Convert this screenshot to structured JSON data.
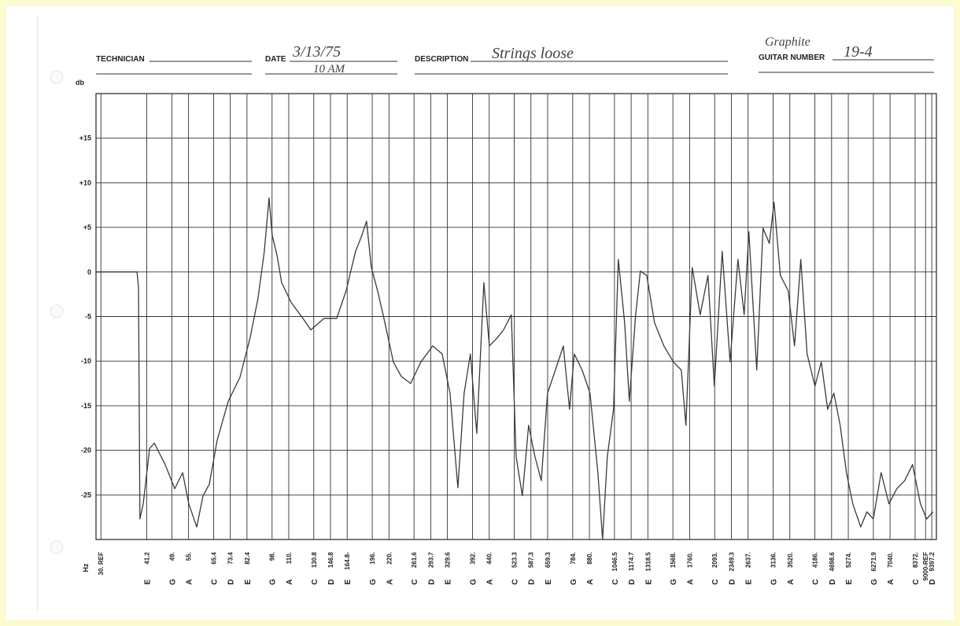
{
  "form": {
    "technician_label": "TECHNICIAN",
    "date_label": "DATE",
    "date_value": "3/13/75",
    "time_value": "10 AM",
    "description_label": "DESCRIPTION",
    "description_value": "Strings loose",
    "guitar_label": "GUITAR NUMBER",
    "guitar_note": "Graphite",
    "guitar_value": "19-4"
  },
  "chart_data": {
    "type": "line",
    "y_label": "db",
    "x_label": "Hz",
    "log_x": true,
    "grid": true,
    "color": "#3a3a3a",
    "xlim": [
      29,
      9700
    ],
    "ylim": [
      -30,
      20
    ],
    "yticks": [
      {
        "value": 15,
        "label": "+15"
      },
      {
        "value": 10,
        "label": "+10"
      },
      {
        "value": 5,
        "label": "+5"
      },
      0,
      -5,
      -10,
      -15,
      -20,
      -25
    ],
    "xticks": [
      {
        "value": 30,
        "label": "30. REF"
      },
      41.2,
      {
        "value": 49,
        "label": "49."
      },
      {
        "value": 55,
        "label": "55."
      },
      65.4,
      73.4,
      82.4,
      {
        "value": 98,
        "label": "98."
      },
      {
        "value": 110,
        "label": "110."
      },
      130.8,
      146.8,
      {
        "value": 164.8,
        "label": "164.8-"
      },
      {
        "value": 196,
        "label": "196."
      },
      {
        "value": 220,
        "label": "220."
      },
      261.6,
      293.7,
      329.6,
      {
        "value": 392,
        "label": "392."
      },
      {
        "value": 440,
        "label": "440."
      },
      523.3,
      587.3,
      659.3,
      {
        "value": 784,
        "label": "784."
      },
      {
        "value": 880,
        "label": "880."
      },
      1046.5,
      1174.7,
      1318.5,
      {
        "value": 1568,
        "label": "1568."
      },
      {
        "value": 1760,
        "label": "1760."
      },
      {
        "value": 2093,
        "label": "2093."
      },
      2349.3,
      {
        "value": 2637,
        "label": "2637."
      },
      {
        "value": 3136,
        "label": "3136."
      },
      {
        "value": 3520,
        "label": "3520."
      },
      {
        "value": 4186,
        "label": "4186."
      },
      4698.6,
      {
        "value": 5274,
        "label": "5274."
      },
      6271.9,
      {
        "value": 7040,
        "label": "7040."
      },
      {
        "value": 8372,
        "label": "8372."
      },
      {
        "value": 9000,
        "label": "9000-REF"
      },
      9397.2
    ],
    "x_notes": [
      null,
      "E",
      "G",
      "A",
      "C",
      "D",
      "E",
      "G",
      "A",
      "C",
      "D",
      "E",
      "G",
      "A",
      "C",
      "D",
      "E",
      "G",
      "A",
      "C",
      "D",
      "E",
      "G",
      "A",
      "C",
      "D",
      "E",
      "G",
      "A",
      "C",
      "D",
      "E",
      "G",
      "A",
      "C",
      "D",
      "E",
      "G",
      "A",
      "C",
      null,
      "D"
    ],
    "x": [
      29,
      38.5,
      38.9,
      39.3,
      40.2,
      42,
      43.4,
      46.8,
      50,
      52.8,
      55.1,
      58.2,
      60.8,
      63.5,
      67,
      72.4,
      78.5,
      84.2,
      88.9,
      92.9,
      96,
      98.1,
      101.4,
      104.7,
      111.8,
      121.3,
      128.1,
      140.5,
      153.3,
      163.6,
      174.6,
      182.4,
      188.4,
      194.7,
      203.3,
      212.4,
      226.8,
      239.5,
      255.5,
      274.3,
      297.8,
      317.8,
      335.5,
      354.4,
      370,
      386.3,
      403.7,
      424,
      440.5,
      464.9,
      485.8,
      512.7,
      530,
      553.3,
      578,
      603.8,
      630.8,
      658.6,
      695.4,
      734.6,
      767,
      792.6,
      837,
      883.6,
      933.2,
      964,
      996,
      1040,
      1075,
      1123,
      1160,
      1212,
      1252,
      1308,
      1381,
      1473,
      1573,
      1661,
      1716,
      1792,
      1893,
      1998,
      2088,
      2205,
      2328,
      2458,
      2567,
      2652,
      2800,
      2925,
      3055,
      3156,
      3297,
      3480,
      3635,
      3798,
      3967,
      4189,
      4376,
      4571,
      4774,
      4985,
      5207,
      5440,
      5745,
      6000,
      6268,
      6618,
      6986,
      7378,
      7791,
      8225,
      8686,
      9072,
      9477
    ],
    "values": [
      0,
      0,
      -1.7,
      -27.7,
      -26,
      -19.8,
      -19.2,
      -21.6,
      -24.3,
      -22.5,
      -26,
      -28.6,
      -25.1,
      -23.8,
      -18.9,
      -14.5,
      -11.8,
      -7.4,
      -3,
      2.3,
      8.3,
      4.1,
      1.9,
      -1.2,
      -3.4,
      -5.2,
      -6.5,
      -5.2,
      -5.2,
      -2.1,
      2.3,
      4.1,
      5.7,
      0.5,
      -2.1,
      -5.2,
      -10.1,
      -11.7,
      -12.5,
      -10.1,
      -8.3,
      -9.2,
      -13.6,
      -24.2,
      -13.6,
      -9.2,
      -18.1,
      -1.2,
      -8.3,
      -7.4,
      -6.5,
      -4.8,
      -20.7,
      -25.1,
      -17.2,
      -20.7,
      -23.4,
      -13.6,
      -11,
      -8.3,
      -15.4,
      -9.2,
      -11,
      -13.6,
      -22.5,
      -30,
      -20.7,
      -15.4,
      1.4,
      -5.7,
      -14.5,
      -4.8,
      0.1,
      -0.4,
      -5.7,
      -8.3,
      -10.1,
      -11,
      -17.2,
      0.5,
      -4.8,
      -0.4,
      -12.8,
      2.3,
      -10.1,
      1.4,
      -4.8,
      4.5,
      -11,
      4.9,
      3.2,
      7.8,
      -0.4,
      -2.1,
      -8.3,
      1.4,
      -9.2,
      -12.8,
      -10.1,
      -15.4,
      -13.6,
      -17.2,
      -22.5,
      -26,
      -28.6,
      -26.9,
      -27.7,
      -22.5,
      -26,
      -24.3,
      -23.4,
      -21.6,
      -26,
      -27.7,
      -26.9
    ]
  }
}
